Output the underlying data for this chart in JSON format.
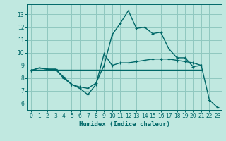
{
  "xlabel": "Humidex (Indice chaleur)",
  "x": [
    0,
    1,
    2,
    3,
    4,
    5,
    6,
    7,
    8,
    9,
    10,
    11,
    12,
    13,
    14,
    15,
    16,
    17,
    18,
    19,
    20,
    21,
    22,
    23
  ],
  "line1_y": [
    8.6,
    8.8,
    8.7,
    8.7,
    8.0,
    7.5,
    7.2,
    6.7,
    7.5,
    9.9,
    9.0,
    9.2,
    9.2,
    9.3,
    9.4,
    9.5,
    9.5,
    9.5,
    9.4,
    9.3,
    9.2,
    9.0,
    6.3,
    5.7
  ],
  "line2_y": [
    8.6,
    8.8,
    8.7,
    8.7,
    8.1,
    7.5,
    7.3,
    7.2,
    7.6,
    9.0,
    11.4,
    12.3,
    13.3,
    11.9,
    12.0,
    11.5,
    11.6,
    10.3,
    9.6,
    9.6,
    8.9,
    9.0,
    null,
    null
  ],
  "line3_y": [
    8.65,
    8.65,
    8.65,
    8.65,
    8.65,
    8.65,
    8.65,
    8.65,
    8.65,
    8.65,
    8.65,
    8.65,
    8.65,
    8.65,
    8.65,
    8.65,
    8.65,
    8.65,
    8.65,
    8.65,
    8.65,
    8.65,
    null,
    null
  ],
  "bg_color": "#c0e8e0",
  "line_color": "#006868",
  "grid_color": "#90c8c0",
  "ylim": [
    5.5,
    13.8
  ],
  "xlim": [
    -0.5,
    23.5
  ],
  "yticks": [
    6,
    7,
    8,
    9,
    10,
    11,
    12,
    13
  ],
  "xticks": [
    0,
    1,
    2,
    3,
    4,
    5,
    6,
    7,
    8,
    9,
    10,
    11,
    12,
    13,
    14,
    15,
    16,
    17,
    18,
    19,
    20,
    21,
    22,
    23
  ],
  "tick_fontsize": 5.5,
  "xlabel_fontsize": 6.5,
  "linewidth": 1.0,
  "marker_size": 2.5
}
